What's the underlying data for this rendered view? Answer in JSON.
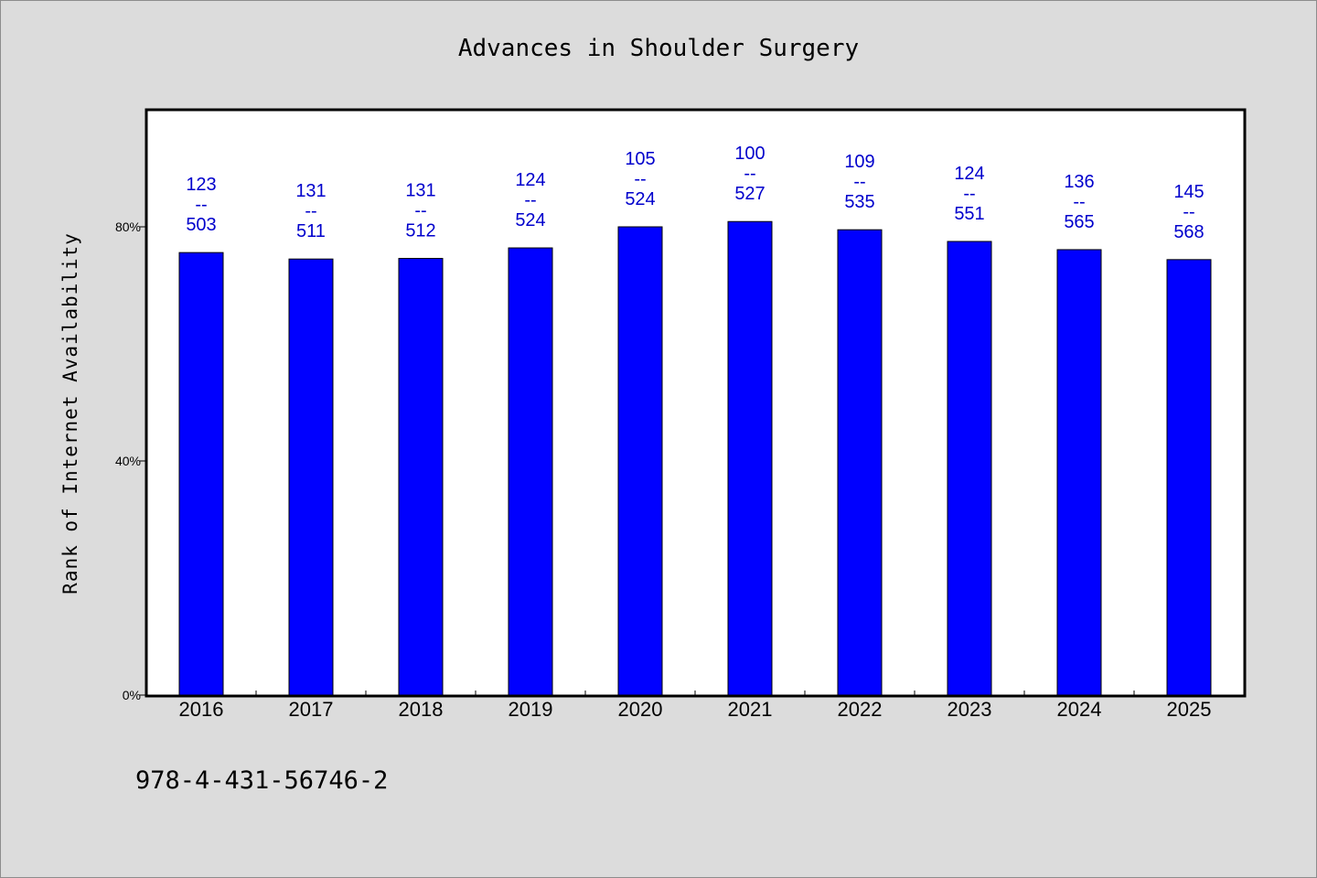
{
  "chart_data": {
    "type": "bar",
    "title": "Advances in Shoulder Surgery",
    "xlabel": "",
    "ylabel": "Rank of Internet Availability",
    "categories": [
      "2016",
      "2017",
      "2018",
      "2019",
      "2020",
      "2021",
      "2022",
      "2023",
      "2024",
      "2025"
    ],
    "values": [
      75.6,
      74.5,
      74.6,
      76.4,
      80.0,
      80.9,
      79.5,
      77.5,
      76.1,
      74.4
    ],
    "data_labels": [
      [
        "123",
        "--",
        "503"
      ],
      [
        "131",
        "--",
        "511"
      ],
      [
        "131",
        "--",
        "512"
      ],
      [
        "124",
        "--",
        "524"
      ],
      [
        "105",
        "--",
        "524"
      ],
      [
        "100",
        "--",
        "527"
      ],
      [
        "109",
        "--",
        "535"
      ],
      [
        "124",
        "--",
        "551"
      ],
      [
        "136",
        "--",
        "565"
      ],
      [
        "145",
        "--",
        "568"
      ]
    ],
    "yticks": [
      0,
      40,
      80
    ],
    "ytick_labels": [
      "0%",
      "40%",
      "80%"
    ],
    "ylim": [
      0,
      100
    ],
    "grid": false,
    "legend": "none",
    "bar_color": "#0000ff",
    "label_color": "#0000cc"
  },
  "footer": {
    "text": "978-4-431-56746-2"
  }
}
